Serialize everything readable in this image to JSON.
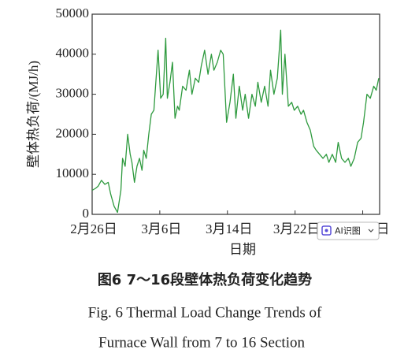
{
  "chart_data": {
    "type": "line",
    "x_label": "日期",
    "y_label": "壁体热负荷/(MJ/h)",
    "xlim": [
      0,
      34
    ],
    "xticks": [
      {
        "value": 0,
        "label": "2月26日"
      },
      {
        "value": 8,
        "label": "3月6日"
      },
      {
        "value": 16,
        "label": "3月14日"
      },
      {
        "value": 24,
        "label": "3月22日"
      },
      {
        "value": 32,
        "label": "日"
      }
    ],
    "ylim": [
      0,
      50000
    ],
    "yticks": [
      0,
      10000,
      20000,
      30000,
      40000,
      50000
    ],
    "x": [
      0,
      0.4,
      0.7,
      1.1,
      1.5,
      1.9,
      2.2,
      2.6,
      3.0,
      3.4,
      3.6,
      3.9,
      4.2,
      4.5,
      4.7,
      5.0,
      5.3,
      5.6,
      5.9,
      6.1,
      6.4,
      6.7,
      7.0,
      7.3,
      7.5,
      7.8,
      8.1,
      8.4,
      8.7,
      8.9,
      9.2,
      9.5,
      9.8,
      10.1,
      10.3,
      10.7,
      11.1,
      11.5,
      11.8,
      12.2,
      12.6,
      12.9,
      13.3,
      13.7,
      14.1,
      14.4,
      14.8,
      15.2,
      15.5,
      15.9,
      16.3,
      16.7,
      17.0,
      17.4,
      17.8,
      18.1,
      18.5,
      18.9,
      19.3,
      19.6,
      20.0,
      20.4,
      20.8,
      21.1,
      21.5,
      21.9,
      22.3,
      22.5,
      22.8,
      23.2,
      23.6,
      23.9,
      24.3,
      24.7,
      25.0,
      25.4,
      25.8,
      26.2,
      26.5,
      26.9,
      27.3,
      27.7,
      28.0,
      28.4,
      28.8,
      29.1,
      29.5,
      29.9,
      30.3,
      30.6,
      31.0,
      31.4,
      31.8,
      32.1,
      32.5,
      32.9,
      33.3,
      33.6,
      33.9
    ],
    "series": [
      {
        "color": "#2e9a3e",
        "values": [
          6000,
          6500,
          7000,
          8500,
          7500,
          8000,
          5000,
          2000,
          500,
          6000,
          14000,
          12000,
          20000,
          15000,
          13000,
          8000,
          12000,
          14000,
          11000,
          16000,
          14000,
          20000,
          25000,
          26000,
          32000,
          41000,
          29000,
          30000,
          44000,
          29000,
          33000,
          38000,
          24000,
          27000,
          26000,
          32000,
          31000,
          36000,
          30000,
          34000,
          33000,
          37000,
          41000,
          35000,
          40000,
          36000,
          38000,
          41000,
          40000,
          23000,
          28000,
          35000,
          24000,
          32000,
          26000,
          30000,
          24000,
          30000,
          27000,
          33000,
          28000,
          32000,
          27000,
          36000,
          30000,
          34000,
          46000,
          30000,
          40000,
          27000,
          28000,
          26000,
          27000,
          25000,
          26000,
          23000,
          21000,
          17000,
          16000,
          15000,
          14000,
          15000,
          13000,
          15000,
          13000,
          18000,
          14000,
          13000,
          14000,
          12000,
          14000,
          18000,
          19000,
          23000,
          30000,
          29000,
          32000,
          31000,
          34000
        ]
      }
    ]
  },
  "caption": {
    "zh": "图6  7～16段壁体热负荷变化趋势",
    "en_line1": "Fig. 6  Thermal Load Change Trends of",
    "en_line2": "Furnace Wall from 7 to 16 Section"
  },
  "overlay_button": {
    "label": "AI识图"
  }
}
